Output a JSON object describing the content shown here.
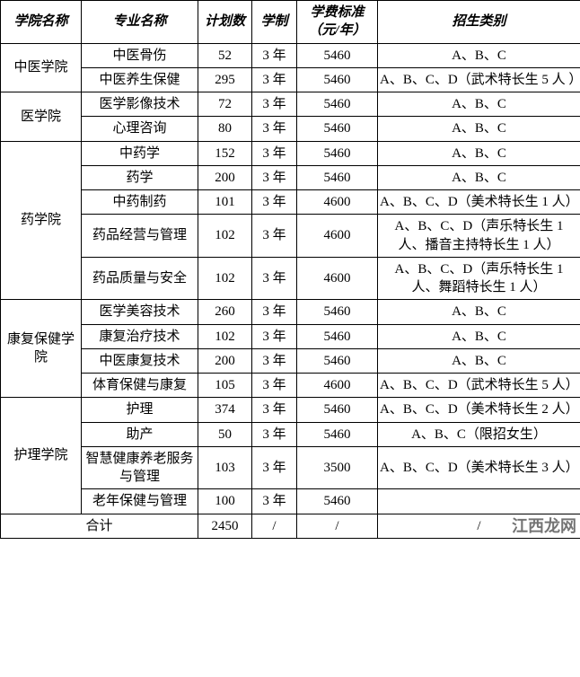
{
  "table": {
    "headers": {
      "college": "学院名称",
      "major": "专业名称",
      "plan": "计划数",
      "duration": "学制",
      "fee": "学费标准（元/年）",
      "category": "招生类别"
    },
    "colleges": [
      {
        "name": "中医学院",
        "majors": [
          {
            "name": "中医骨伤",
            "plan": "52",
            "duration": "3 年",
            "fee": "5460",
            "category": "A、B、C"
          },
          {
            "name": "中医养生保健",
            "plan": "295",
            "duration": "3 年",
            "fee": "5460",
            "category": "A、B、C、D（武术特长生 5 人 ）"
          }
        ]
      },
      {
        "name": "医学院",
        "majors": [
          {
            "name": "医学影像技术",
            "plan": "72",
            "duration": "3 年",
            "fee": "5460",
            "category": "A、B、C"
          },
          {
            "name": "心理咨询",
            "plan": "80",
            "duration": "3 年",
            "fee": "5460",
            "category": "A、B、C"
          }
        ]
      },
      {
        "name": "药学院",
        "majors": [
          {
            "name": "中药学",
            "plan": "152",
            "duration": "3 年",
            "fee": "5460",
            "category": "A、B、C"
          },
          {
            "name": "药学",
            "plan": "200",
            "duration": "3 年",
            "fee": "5460",
            "category": "A、B、C"
          },
          {
            "name": "中药制药",
            "plan": "101",
            "duration": "3 年",
            "fee": "4600",
            "category": "A、B、C、D（美术特长生 1 人）"
          },
          {
            "name": "药品经营与管理",
            "plan": "102",
            "duration": "3 年",
            "fee": "4600",
            "category": "A、B、C、D（声乐特长生 1 人、播音主持特长生 1 人）"
          },
          {
            "name": "药品质量与安全",
            "plan": "102",
            "duration": "3 年",
            "fee": "4600",
            "category": "A、B、C、D（声乐特长生 1 人、舞蹈特长生 1 人）"
          }
        ]
      },
      {
        "name": "康复保健学院",
        "majors": [
          {
            "name": "医学美容技术",
            "plan": "260",
            "duration": "3 年",
            "fee": "5460",
            "category": "A、B、C"
          },
          {
            "name": "康复治疗技术",
            "plan": "102",
            "duration": "3 年",
            "fee": "5460",
            "category": "A、B、C"
          },
          {
            "name": "中医康复技术",
            "plan": "200",
            "duration": "3 年",
            "fee": "5460",
            "category": "A、B、C"
          },
          {
            "name": "体育保健与康复",
            "plan": "105",
            "duration": "3 年",
            "fee": "4600",
            "category": "A、B、C、D（武术特长生 5 人）"
          }
        ]
      },
      {
        "name": "护理学院",
        "majors": [
          {
            "name": "护理",
            "plan": "374",
            "duration": "3 年",
            "fee": "5460",
            "category": "A、B、C、D（美术特长生 2 人）"
          },
          {
            "name": "助产",
            "plan": "50",
            "duration": "3 年",
            "fee": "5460",
            "category": "A、B、C（限招女生）"
          },
          {
            "name": "智慧健康养老服务与管理",
            "plan": "103",
            "duration": "3 年",
            "fee": "3500",
            "category": "A、B、C、D（美术特长生 3 人）"
          },
          {
            "name": "老年保健与管理",
            "plan": "100",
            "duration": "3 年",
            "fee": "5460",
            "category": ""
          }
        ]
      }
    ],
    "total": {
      "label": "合计",
      "plan": "2450",
      "duration": "/",
      "fee": "/",
      "category": "/"
    }
  },
  "watermark": "江西龙网"
}
